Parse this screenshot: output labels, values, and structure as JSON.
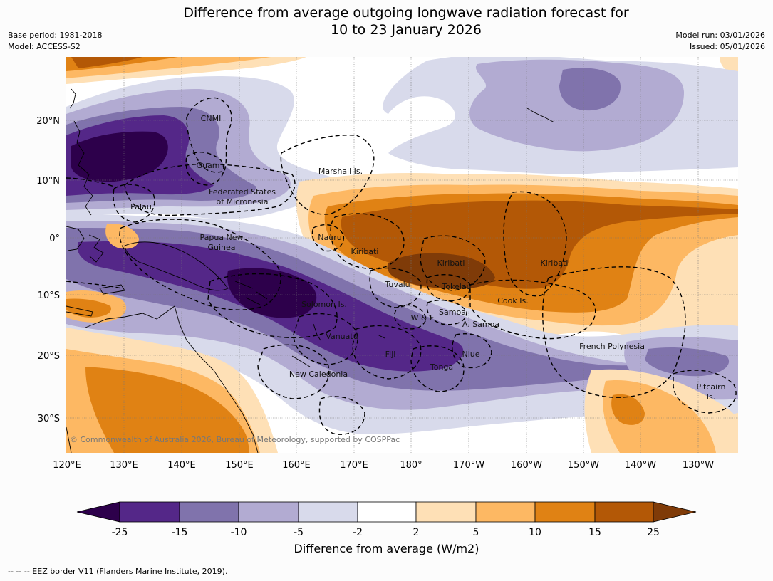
{
  "title": {
    "line1": "Difference from average outgoing longwave radiation forecast for",
    "line2": "10 to 23 January 2026"
  },
  "meta": {
    "base_period": "Base period: 1981-2018",
    "model": "Model: ACCESS-S2",
    "model_run": "Model run: 03/01/2026",
    "issued": "Issued: 05/01/2026"
  },
  "axes": {
    "lat_labels": [
      "20°N",
      "10°N",
      "0°",
      "10°S",
      "20°S",
      "30°S"
    ],
    "lon_labels": [
      "120°E",
      "130°E",
      "140°E",
      "150°E",
      "160°E",
      "170°E",
      "180°",
      "170°W",
      "160°W",
      "150°W",
      "140°W",
      "130°W"
    ]
  },
  "places": {
    "cnmi": "CNMI",
    "guam": "Guam",
    "marshall": "Marshall Is.",
    "fsm_1": "Federated States",
    "fsm_2": "of Micronesia",
    "palau": "Palau",
    "png_1": "Papua New",
    "png_2": "Guinea",
    "nauru": "Nauru",
    "kiribati_w": "Kiribati",
    "kiribati_c": "Kiribati",
    "kiribati_e": "Kiribati",
    "tuvalu": "Tuvalu",
    "tokelau": "Tokelau",
    "cook": "Cook Is.",
    "samoa": "Samoa",
    "wf": "W & F",
    "asamoa": "A. Samoa",
    "solomon": "Solomon Is.",
    "vanuatu": "Vanuatu",
    "fiji": "Fiji",
    "niue": "Niue",
    "tonga": "Tonga",
    "french_poly": "French Polynesia",
    "pitcairn_1": "Pitcairn",
    "pitcairn_2": "Is.",
    "new_caledonia": "New Caledonia"
  },
  "copyright": "© Commonwealth of Australia 2026, Bureau of Meteorology, supported by COSPPac",
  "colorbar": {
    "ticks": [
      "-25",
      "-15",
      "-10",
      "-5",
      "-2",
      "2",
      "5",
      "10",
      "15",
      "25"
    ],
    "colors": {
      "lt25": "#2d004b",
      "m25_15": "#542788",
      "m15_10": "#8073ac",
      "m10_5": "#b2abd2",
      "m5_2": "#d8daeb",
      "neutral": "#ffffff",
      "p2_5": "#fee0b6",
      "p5_10": "#fdb863",
      "p10_15": "#e08214",
      "p15_25": "#b35806",
      "gt25": "#7f3b08"
    },
    "label": "Difference from average (W/m2)"
  },
  "eez_note": "-- -- -- EEZ border V11 (Flanders Marine Institute, 2019)."
}
